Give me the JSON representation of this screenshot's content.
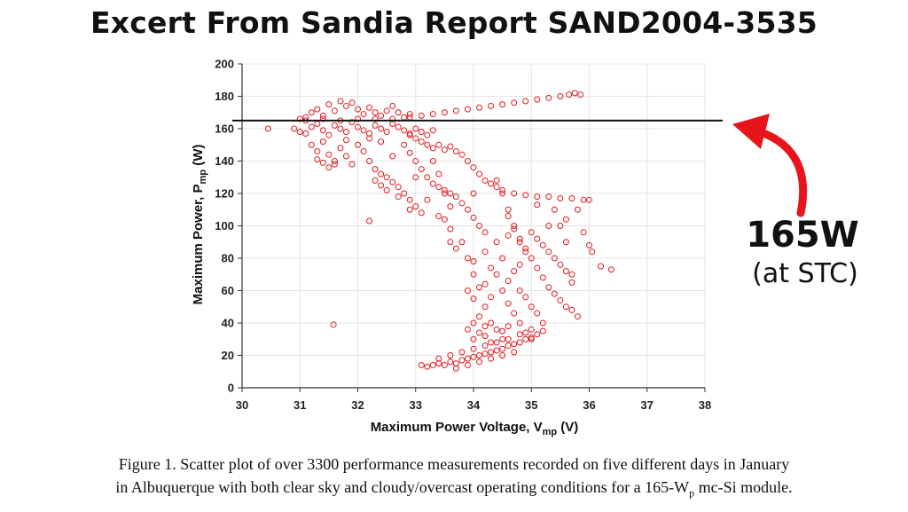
{
  "header": {
    "title": "Excert From Sandia Report SAND2004-3535"
  },
  "caption": {
    "line1": "Figure 1.  Scatter plot of over 3300 performance measurements recorded on five different days in January",
    "line2_pre": "in Albuquerque with both clear sky and cloudy/overcast operating conditions for a 165-W",
    "line2_sub": "p",
    "line2_post": " mc-Si module."
  },
  "annotation": {
    "value": "165W",
    "note": "(at STC)",
    "arrow_color": "#e8141c"
  },
  "chart_data": {
    "type": "scatter",
    "xlabel_main": "Maximum Power Voltage, V",
    "xlabel_sub": "mp",
    "xlabel_unit": " (V)",
    "ylabel_main": "Maximum Power, P",
    "ylabel_sub": "mp",
    "ylabel_unit": " (W)",
    "xlim": [
      30,
      38
    ],
    "ylim": [
      0,
      200
    ],
    "xticks": [
      "30",
      "31",
      "32",
      "33",
      "34",
      "35",
      "36",
      "37",
      "38"
    ],
    "yticks": [
      "0",
      "20",
      "40",
      "60",
      "80",
      "100",
      "120",
      "140",
      "160",
      "180",
      "200"
    ],
    "grid": true,
    "marker_color": "#e0191e",
    "reference_line": {
      "y": 165
    },
    "series": [
      {
        "points": [
          [
            30.45,
            160
          ],
          [
            31.0,
            166
          ],
          [
            31.1,
            165
          ],
          [
            31.2,
            170
          ],
          [
            31.3,
            172
          ],
          [
            31.4,
            168
          ],
          [
            31.5,
            175
          ],
          [
            31.6,
            171
          ],
          [
            31.7,
            177
          ],
          [
            31.8,
            174
          ],
          [
            31.9,
            176
          ],
          [
            32.0,
            172
          ],
          [
            32.1,
            169
          ],
          [
            32.2,
            173
          ],
          [
            32.3,
            170
          ],
          [
            32.4,
            168
          ],
          [
            32.5,
            171
          ],
          [
            32.6,
            174
          ],
          [
            32.7,
            170
          ],
          [
            32.8,
            167
          ],
          [
            32.9,
            169
          ],
          [
            30.9,
            160
          ],
          [
            31.0,
            158
          ],
          [
            31.1,
            157
          ],
          [
            31.2,
            161
          ],
          [
            31.3,
            163
          ],
          [
            31.4,
            159
          ],
          [
            31.5,
            156
          ],
          [
            31.6,
            162
          ],
          [
            31.7,
            160
          ],
          [
            31.8,
            158
          ],
          [
            31.9,
            164
          ],
          [
            32.0,
            161
          ],
          [
            32.1,
            159
          ],
          [
            32.2,
            157
          ],
          [
            32.3,
            162
          ],
          [
            32.4,
            160
          ],
          [
            32.5,
            158
          ],
          [
            32.6,
            163
          ],
          [
            32.7,
            161
          ],
          [
            32.8,
            159
          ],
          [
            32.9,
            157
          ],
          [
            33.0,
            160
          ],
          [
            33.1,
            158
          ],
          [
            33.2,
            156
          ],
          [
            33.3,
            159
          ],
          [
            31.2,
            150
          ],
          [
            31.3,
            146
          ],
          [
            31.4,
            152
          ],
          [
            31.5,
            144
          ],
          [
            31.6,
            140
          ],
          [
            31.7,
            148
          ],
          [
            31.8,
            143
          ],
          [
            31.9,
            138
          ],
          [
            32.0,
            150
          ],
          [
            32.1,
            146
          ],
          [
            31.5,
            136
          ],
          [
            31.6,
            138
          ],
          [
            31.3,
            141
          ],
          [
            31.4,
            139
          ],
          [
            31.8,
            153
          ],
          [
            32.2,
            154
          ],
          [
            32.4,
            152
          ],
          [
            31.1,
            167
          ],
          [
            31.4,
            166
          ],
          [
            31.7,
            165
          ],
          [
            32.0,
            166
          ],
          [
            32.3,
            166
          ],
          [
            32.6,
            166
          ],
          [
            32.9,
            167
          ],
          [
            33.1,
            168
          ],
          [
            33.3,
            169
          ],
          [
            33.5,
            170
          ],
          [
            33.7,
            171
          ],
          [
            33.9,
            172
          ],
          [
            34.1,
            173
          ],
          [
            34.3,
            174
          ],
          [
            34.5,
            175
          ],
          [
            34.7,
            176
          ],
          [
            34.9,
            177
          ],
          [
            35.1,
            178
          ],
          [
            35.3,
            179
          ],
          [
            35.5,
            180
          ],
          [
            35.65,
            181
          ],
          [
            35.75,
            182
          ],
          [
            35.85,
            181
          ],
          [
            32.9,
            156
          ],
          [
            33.0,
            154
          ],
          [
            33.1,
            152
          ],
          [
            33.2,
            150
          ],
          [
            33.3,
            148
          ],
          [
            33.4,
            150
          ],
          [
            33.5,
            147
          ],
          [
            33.6,
            149
          ],
          [
            33.7,
            146
          ],
          [
            33.8,
            144
          ],
          [
            33.9,
            140
          ],
          [
            34.0,
            136
          ],
          [
            34.1,
            132
          ],
          [
            34.2,
            128
          ],
          [
            34.3,
            126
          ],
          [
            34.4,
            124
          ],
          [
            34.5,
            122
          ],
          [
            34.7,
            120
          ],
          [
            34.9,
            119
          ],
          [
            35.1,
            118
          ],
          [
            35.3,
            118
          ],
          [
            35.5,
            117
          ],
          [
            35.7,
            117
          ],
          [
            35.9,
            116
          ],
          [
            36.0,
            116
          ],
          [
            32.2,
            140
          ],
          [
            32.3,
            135
          ],
          [
            32.4,
            132
          ],
          [
            32.5,
            130
          ],
          [
            32.6,
            127
          ],
          [
            32.7,
            124
          ],
          [
            32.8,
            120
          ],
          [
            32.9,
            116
          ],
          [
            33.0,
            112
          ],
          [
            33.1,
            108
          ],
          [
            32.3,
            128
          ],
          [
            32.4,
            125
          ],
          [
            32.5,
            122
          ],
          [
            32.7,
            118
          ],
          [
            32.9,
            110
          ],
          [
            32.8,
            150
          ],
          [
            32.9,
            145
          ],
          [
            33.0,
            140
          ],
          [
            33.1,
            135
          ],
          [
            33.2,
            130
          ],
          [
            33.3,
            126
          ],
          [
            33.4,
            124
          ],
          [
            33.5,
            122
          ],
          [
            33.6,
            120
          ],
          [
            33.7,
            118
          ],
          [
            33.8,
            114
          ],
          [
            33.9,
            110
          ],
          [
            34.0,
            105
          ],
          [
            34.1,
            100
          ],
          [
            34.2,
            96
          ],
          [
            33.3,
            140
          ],
          [
            33.4,
            132
          ],
          [
            33.5,
            120
          ],
          [
            33.6,
            112
          ],
          [
            33.5,
            104
          ],
          [
            33.6,
            98
          ],
          [
            33.6,
            90
          ],
          [
            33.7,
            86
          ],
          [
            34.4,
            128
          ],
          [
            34.5,
            120
          ],
          [
            34.6,
            110
          ],
          [
            34.7,
            100
          ],
          [
            34.8,
            92
          ],
          [
            34.9,
            86
          ],
          [
            35.0,
            80
          ],
          [
            35.1,
            74
          ],
          [
            35.2,
            68
          ],
          [
            35.3,
            62
          ],
          [
            35.4,
            58
          ],
          [
            35.5,
            54
          ],
          [
            35.6,
            50
          ],
          [
            35.7,
            48
          ],
          [
            35.8,
            44
          ],
          [
            34.6,
            106
          ],
          [
            34.7,
            98
          ],
          [
            34.8,
            90
          ],
          [
            34.9,
            84
          ],
          [
            35.0,
            96
          ],
          [
            35.1,
            92
          ],
          [
            35.2,
            88
          ],
          [
            35.3,
            84
          ],
          [
            35.4,
            80
          ],
          [
            35.5,
            76
          ],
          [
            35.6,
            72
          ],
          [
            35.7,
            70
          ],
          [
            35.5,
            100
          ],
          [
            35.6,
            104
          ],
          [
            35.8,
            110
          ],
          [
            35.4,
            110
          ],
          [
            35.6,
            90
          ],
          [
            35.9,
            96
          ],
          [
            36.0,
            88
          ],
          [
            36.05,
            84
          ],
          [
            36.2,
            75
          ],
          [
            36.38,
            73
          ],
          [
            35.1,
            113
          ],
          [
            35.3,
            100
          ],
          [
            35.7,
            65
          ],
          [
            33.8,
            90
          ],
          [
            33.9,
            80
          ],
          [
            34.0,
            70
          ],
          [
            34.1,
            62
          ],
          [
            34.0,
            55
          ],
          [
            34.2,
            50
          ],
          [
            34.1,
            44
          ],
          [
            34.3,
            40
          ],
          [
            34.4,
            36
          ],
          [
            34.5,
            30
          ],
          [
            33.9,
            60
          ],
          [
            34.2,
            64
          ],
          [
            34.3,
            56
          ],
          [
            34.5,
            60
          ],
          [
            34.6,
            52
          ],
          [
            34.7,
            46
          ],
          [
            34.8,
            40
          ],
          [
            34.9,
            34
          ],
          [
            35.0,
            30
          ],
          [
            34.3,
            74
          ],
          [
            34.5,
            80
          ],
          [
            34.4,
            70
          ],
          [
            34.6,
            66
          ],
          [
            34.7,
            72
          ],
          [
            34.8,
            60
          ],
          [
            34.9,
            56
          ],
          [
            35.0,
            50
          ],
          [
            35.1,
            46
          ],
          [
            35.2,
            40
          ],
          [
            34.0,
            78
          ],
          [
            34.2,
            84
          ],
          [
            34.4,
            90
          ],
          [
            34.6,
            94
          ],
          [
            34.8,
            76
          ],
          [
            33.1,
            14
          ],
          [
            33.2,
            13
          ],
          [
            33.3,
            14
          ],
          [
            33.4,
            15
          ],
          [
            33.5,
            14
          ],
          [
            33.6,
            16
          ],
          [
            33.7,
            15
          ],
          [
            33.8,
            17
          ],
          [
            33.9,
            18
          ],
          [
            34.0,
            19
          ],
          [
            34.1,
            20
          ],
          [
            34.2,
            21
          ],
          [
            34.3,
            22
          ],
          [
            34.4,
            23
          ],
          [
            34.5,
            24
          ],
          [
            34.6,
            26
          ],
          [
            34.7,
            27
          ],
          [
            34.8,
            28
          ],
          [
            34.9,
            30
          ],
          [
            35.0,
            31
          ],
          [
            35.1,
            33
          ],
          [
            35.2,
            35
          ],
          [
            33.4,
            18
          ],
          [
            33.6,
            20
          ],
          [
            33.8,
            22
          ],
          [
            34.0,
            24
          ],
          [
            34.2,
            26
          ],
          [
            34.4,
            28
          ],
          [
            34.6,
            30
          ],
          [
            34.8,
            33
          ],
          [
            35.0,
            36
          ],
          [
            33.7,
            12
          ],
          [
            33.9,
            14
          ],
          [
            34.1,
            16
          ],
          [
            34.3,
            18
          ],
          [
            34.5,
            20
          ],
          [
            34.7,
            22
          ],
          [
            34.0,
            30
          ],
          [
            34.1,
            34
          ],
          [
            34.2,
            32
          ],
          [
            34.3,
            28
          ],
          [
            34.5,
            35
          ],
          [
            34.6,
            38
          ],
          [
            34.2,
            38
          ],
          [
            34.0,
            40
          ],
          [
            33.9,
            36
          ],
          [
            31.58,
            39
          ],
          [
            32.2,
            103
          ],
          [
            33.2,
            116
          ],
          [
            33.4,
            106
          ],
          [
            33.0,
            130
          ],
          [
            32.6,
            143
          ],
          [
            34.0,
            120
          ]
        ]
      }
    ]
  }
}
